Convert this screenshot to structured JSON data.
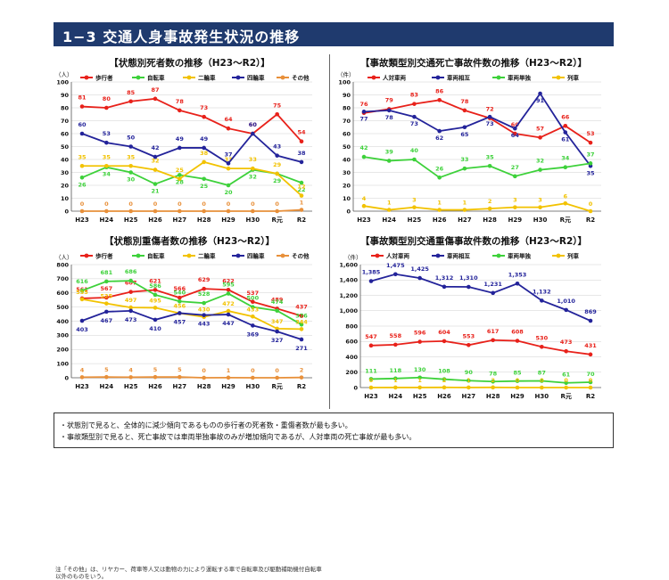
{
  "page": {
    "title": "1−3 交通人身事故発生状況の推移"
  },
  "summary": [
    "・状態別で見ると、全体的に減少傾向であるものの歩行者の死者数・重傷者数が最も多い。",
    "・事故類型別で見ると、死亡事故では車両単独事故のみが増加傾向であるが、人対車両の死亡事故が最も多い。"
  ],
  "footnote": "注「その他」は、リヤカー、荷車等人又は動物の力により運転する車で自転車及び駆動補助機付自転車以外のものをいう。",
  "colors": {
    "red": "#e8211a",
    "green": "#3dd13a",
    "yellow": "#f2c200",
    "blue": "#23239a",
    "orange": "#e8903a"
  },
  "chart_data": [
    {
      "type": "line",
      "title": "【状態別死者数の推移（H23～R2）】",
      "ylabel": "（人）",
      "ylim": [
        0,
        100
      ],
      "yticks": [
        0,
        10,
        20,
        30,
        40,
        50,
        60,
        70,
        80,
        90,
        100
      ],
      "categories": [
        "H23",
        "H24",
        "H25",
        "H26",
        "H27",
        "H28",
        "H29",
        "H30",
        "R元",
        "R2"
      ],
      "series": [
        {
          "name": "歩行者",
          "color": "red",
          "values": [
            81,
            80,
            85,
            87,
            78,
            73,
            64,
            60,
            75,
            54
          ]
        },
        {
          "name": "自転車",
          "color": "green",
          "values": [
            26,
            34,
            30,
            21,
            28,
            25,
            20,
            32,
            29,
            22
          ]
        },
        {
          "name": "二輪車",
          "color": "yellow",
          "values": [
            35,
            35,
            35,
            32,
            25,
            38,
            33,
            33,
            29,
            12
          ]
        },
        {
          "name": "四輪車",
          "color": "blue",
          "values": [
            60,
            53,
            50,
            42,
            49,
            49,
            37,
            60,
            43,
            38
          ]
        },
        {
          "name": "その他",
          "color": "orange",
          "values": [
            0,
            0,
            0,
            0,
            0,
            0,
            0,
            0,
            0,
            1
          ]
        }
      ]
    },
    {
      "type": "line",
      "title": "【事故類型別交通死亡事故件数の推移（H23～R2）】",
      "ylabel": "（件）",
      "ylim": [
        0,
        100
      ],
      "yticks": [
        0,
        10,
        20,
        30,
        40,
        50,
        60,
        70,
        80,
        90,
        100
      ],
      "categories": [
        "H23",
        "H24",
        "H25",
        "H26",
        "H27",
        "H28",
        "H29",
        "H30",
        "R元",
        "R2"
      ],
      "series": [
        {
          "name": "人対車両",
          "color": "red",
          "values": [
            76,
            79,
            83,
            86,
            78,
            72,
            60,
            57,
            66,
            53
          ]
        },
        {
          "name": "車両相互",
          "color": "blue",
          "values": [
            77,
            78,
            73,
            62,
            65,
            73,
            64,
            91,
            61,
            35
          ]
        },
        {
          "name": "車両単独",
          "color": "green",
          "values": [
            42,
            39,
            40,
            26,
            33,
            35,
            27,
            32,
            34,
            37
          ]
        },
        {
          "name": "列車",
          "color": "yellow",
          "values": [
            4,
            1,
            3,
            1,
            1,
            2,
            3,
            3,
            6,
            0
          ]
        }
      ]
    },
    {
      "type": "line",
      "title": "【状態別重傷者数の推移（H23～R2）】",
      "ylabel": "（人）",
      "ylim": [
        0,
        800
      ],
      "yticks": [
        0,
        100,
        200,
        300,
        400,
        500,
        600,
        700,
        800
      ],
      "categories": [
        "H23",
        "H24",
        "H25",
        "H26",
        "H27",
        "H28",
        "H29",
        "H30",
        "R元",
        "R2"
      ],
      "series": [
        {
          "name": "歩行者",
          "color": "red",
          "values": [
            561,
            567,
            607,
            621,
            566,
            629,
            622,
            537,
            489,
            437
          ]
        },
        {
          "name": "自転車",
          "color": "green",
          "values": [
            616,
            681,
            686,
            586,
            540,
            528,
            595,
            500,
            474,
            376
          ]
        },
        {
          "name": "二輪車",
          "color": "yellow",
          "values": [
            555,
            525,
            497,
            495,
            456,
            430,
            472,
            433,
            347,
            344
          ]
        },
        {
          "name": "四輪車",
          "color": "blue",
          "values": [
            403,
            467,
            473,
            410,
            457,
            443,
            447,
            369,
            327,
            271
          ]
        },
        {
          "name": "その他",
          "color": "orange",
          "values": [
            4,
            5,
            4,
            5,
            5,
            0,
            1,
            0,
            0,
            2
          ]
        }
      ]
    },
    {
      "type": "line",
      "title": "【事故類型別交通重傷事故件数の推移（H23～R2）】",
      "ylabel": "（件）",
      "ylim": [
        0,
        1600
      ],
      "yticks": [
        0,
        200,
        400,
        600,
        800,
        1000,
        1200,
        1400,
        1600
      ],
      "ytick_labels": [
        "0",
        "200",
        "400",
        "600",
        "800",
        "1,000",
        "1,200",
        "1,400",
        "1,600"
      ],
      "categories": [
        "H23",
        "H24",
        "H25",
        "H26",
        "H27",
        "H28",
        "H29",
        "H30",
        "R元",
        "R2"
      ],
      "series": [
        {
          "name": "人対車両",
          "color": "red",
          "values": [
            547,
            558,
            596,
            604,
            553,
            617,
            608,
            530,
            473,
            431
          ]
        },
        {
          "name": "車両相互",
          "color": "blue",
          "values": [
            1385,
            1475,
            1425,
            1312,
            1310,
            1231,
            1353,
            1132,
            1010,
            869
          ]
        },
        {
          "name": "車両単独",
          "color": "green",
          "values": [
            111,
            118,
            130,
            108,
            90,
            78,
            85,
            87,
            61,
            70
          ]
        },
        {
          "name": "列車",
          "color": "yellow",
          "values": [
            0,
            1,
            1,
            2,
            1,
            2,
            0,
            0,
            0,
            0
          ]
        }
      ],
      "value_labels": [
        [
          "547",
          "558",
          "596",
          "604",
          "553",
          "617",
          "608",
          "530",
          "473",
          "431"
        ],
        [
          "1,385",
          "1,475",
          "1,425",
          "1,312",
          "1,310",
          "1,231",
          "1,353",
          "1,132",
          "1,010",
          "869"
        ],
        [
          "111",
          "118",
          "130",
          "108",
          "90",
          "78",
          "85",
          "87",
          "61",
          "70"
        ],
        [
          "0",
          "1",
          "1",
          "2",
          "1",
          "2",
          "0",
          "0",
          "0",
          "0"
        ]
      ]
    }
  ]
}
